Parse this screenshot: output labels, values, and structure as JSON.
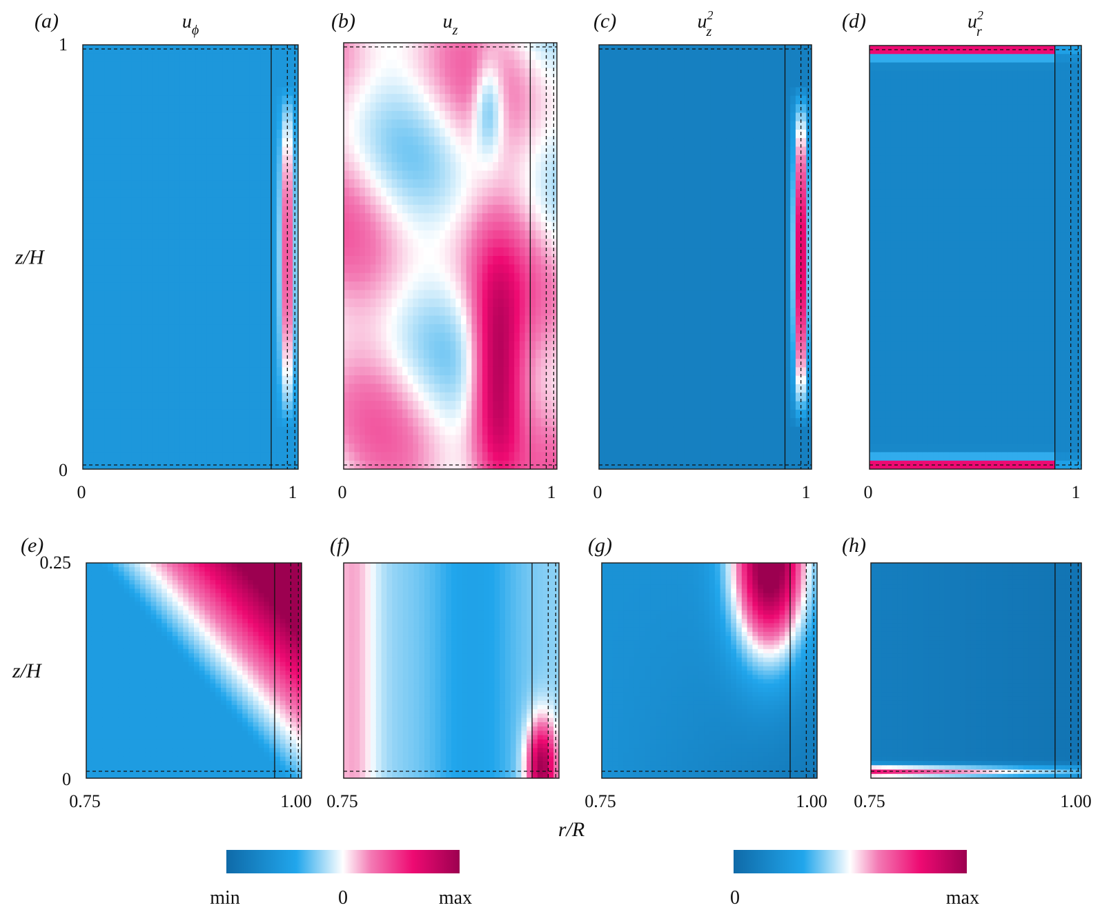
{
  "chart_data": [
    {
      "type": "heatmap",
      "panel": "(a)",
      "title": "u",
      "title_sub": "ϕ",
      "title_sup": "",
      "ylabel": "z/H",
      "xticks": [
        "0",
        "1"
      ],
      "yticks": [
        "0",
        "1"
      ],
      "xlim": [
        0,
        1
      ],
      "ylim": [
        0,
        1
      ],
      "field": {
        "base": -0.55,
        "kind": "wall_jet",
        "amp": 1.0
      }
    },
    {
      "type": "heatmap",
      "panel": "(b)",
      "title": "u",
      "title_sub": "z",
      "title_sup": "",
      "ylabel": "",
      "xticks": [
        "0",
        "1"
      ],
      "yticks": [],
      "xlim": [
        0,
        1
      ],
      "ylim": [
        0,
        1
      ],
      "field": {
        "base": 0.05,
        "kind": "streaks",
        "amp": 0.5
      }
    },
    {
      "type": "heatmap",
      "panel": "(c)",
      "title": "u",
      "title_sub": "z",
      "title_sup": "2",
      "ylabel": "",
      "xticks": [
        "0",
        "1"
      ],
      "yticks": [],
      "xlim": [
        0,
        1
      ],
      "ylim": [
        0,
        1
      ],
      "field": {
        "base": -0.78,
        "kind": "wall_jet",
        "amp": 1.6
      }
    },
    {
      "type": "heatmap",
      "panel": "(d)",
      "title": "u",
      "title_sub": "r",
      "title_sup": "2",
      "ylabel": "",
      "xticks": [
        "0",
        "1"
      ],
      "yticks": [],
      "xlim": [
        0,
        1
      ],
      "ylim": [
        0,
        1
      ],
      "field": {
        "base": -0.72,
        "kind": "end_walls",
        "amp": 1.4
      }
    },
    {
      "type": "heatmap",
      "panel": "(e)",
      "title": "",
      "title_sub": "",
      "title_sup": "",
      "ylabel": "z/H",
      "xticks": [
        "0.75",
        "1.00"
      ],
      "yticks": [
        "0",
        "0.25"
      ],
      "xlim": [
        0.75,
        1.0
      ],
      "ylim": [
        0,
        0.25
      ],
      "field": {
        "base": -0.5,
        "kind": "corner_wedge",
        "amp": 1.2
      }
    },
    {
      "type": "heatmap",
      "panel": "(f)",
      "title": "",
      "title_sub": "",
      "title_sup": "",
      "ylabel": "",
      "xticks": [
        "0.75",
        ""
      ],
      "yticks": [],
      "xlim": [
        0.75,
        1.0
      ],
      "ylim": [
        0,
        0.25
      ],
      "field": {
        "base": -0.2,
        "kind": "bands",
        "amp": 0.4
      }
    },
    {
      "type": "heatmap",
      "panel": "(g)",
      "title": "",
      "title_sub": "",
      "title_sup": "",
      "ylabel": "",
      "xticks": [
        "0.75",
        "1.00"
      ],
      "yticks": [],
      "xlim": [
        0.75,
        1.0
      ],
      "ylim": [
        0,
        0.25
      ],
      "field": {
        "base": -0.6,
        "kind": "corner_lobe",
        "amp": 1.5
      }
    },
    {
      "type": "heatmap",
      "panel": "(h)",
      "title": "",
      "title_sub": "",
      "title_sup": "",
      "ylabel": "",
      "xticks": [
        "0.75",
        "1.00"
      ],
      "yticks": [],
      "xlim": [
        0.75,
        1.0
      ],
      "ylim": [
        0,
        0.25
      ],
      "field": {
        "base": -0.8,
        "kind": "bottom_strip",
        "amp": 1.4
      }
    }
  ],
  "shared_xlabel": "r/R",
  "colorbars": [
    {
      "labels": [
        "min",
        "0",
        "max"
      ]
    },
    {
      "labels": [
        "0",
        "max"
      ]
    }
  ],
  "colors": {
    "stops": [
      "#0f6aa8",
      "#21a6ec",
      "#ffffff",
      "#f37ab4",
      "#ee0a72",
      "#9c0050"
    ]
  }
}
